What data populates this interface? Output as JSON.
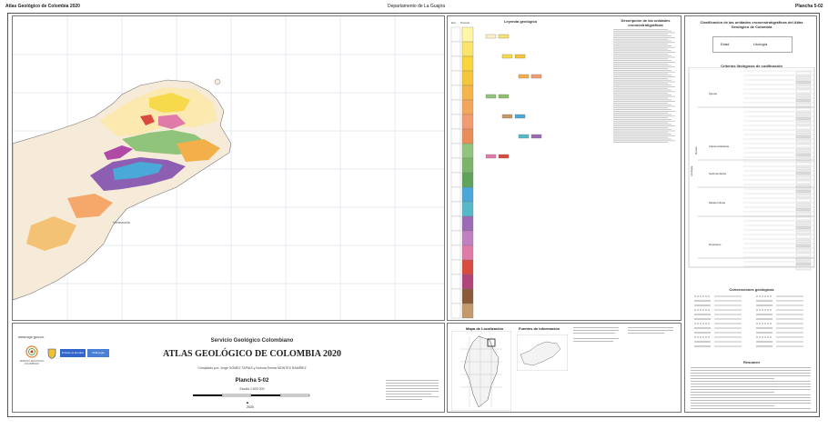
{
  "header": {
    "left": "Atlas Geológico de Colombia 2020",
    "center": "Departamento de La Guajira",
    "right": "Plancha 5-02"
  },
  "map": {
    "place_label": "Venezuela",
    "colors": {
      "sea": "#ffffff",
      "land_background": "#f6ead9",
      "quaternary_light": "#fbe9b0",
      "quaternary_yellow": "#f7d94c",
      "neogene_orange": "#f3b04a",
      "paleogene": "#f6a86b",
      "cretaceous_green": "#8fc47a",
      "jurassic_blue": "#4aa9d9",
      "triassic_purple": "#8c5fb3",
      "metamorphic_pink": "#e07aa9",
      "volcanic_red": "#d94b3c",
      "mountain_magenta": "#b04aa6"
    }
  },
  "legend": {
    "title": "Leyenda geológica",
    "description_title": "Descripción de las unidades cronoestratigráficas",
    "column_headers": [
      "Era",
      "Periodo"
    ],
    "strat_colors": [
      "#fff6a6",
      "#fbe46b",
      "#f8d53c",
      "#f6c63a",
      "#f4b54a",
      "#f2a65b",
      "#f29a72",
      "#e98e58",
      "#93c47d",
      "#7bb56a",
      "#5fa35b",
      "#4da6d8",
      "#57b8c9",
      "#9b6bb5",
      "#c07fc0",
      "#e07aa9",
      "#d94b3c",
      "#b0447b",
      "#8a5a3a",
      "#c49a6c"
    ],
    "boxes": [
      {
        "color": "#fbf2c8"
      },
      {
        "color": "#f7e27a"
      },
      {
        "color": "#f7d94c"
      },
      {
        "color": "#f6c63a"
      },
      {
        "color": "#f3b04a"
      },
      {
        "color": "#f29a72"
      },
      {
        "color": "#93c47d"
      },
      {
        "color": "#8fbf6a"
      },
      {
        "color": "#c49a6c"
      },
      {
        "color": "#4aa9d9"
      },
      {
        "color": "#57b8c9"
      },
      {
        "color": "#9b6bb5"
      },
      {
        "color": "#e07aa9"
      },
      {
        "color": "#d94b3c"
      }
    ]
  },
  "right_panel": {
    "classification_title": "Clasificación de las unidades cronoestratigráficas del Atlas Geológico de Colombia",
    "code_label": "Edad",
    "litho_label": "Litología",
    "criteria_title": "Criterios litológicos de codificación",
    "litho_groups": [
      "Ígneas",
      "Volcanoclásticas",
      "Sedimentarias",
      "Metamórficas",
      "Depósitos"
    ],
    "lithology_side": "Litología",
    "rocks_side": "Rocas",
    "conventions_title": "Convenciones geológicas",
    "summary_title": "Resumen"
  },
  "title_block": {
    "url": "www.sgc.gov.co",
    "institution": "Servicio Geológico Colombiano",
    "atlas_title": "ATLAS GEOLÓGICO DE COLOMBIA 2020",
    "compiled_by": "Compilado por: Jorge GÓMEZ TAPIAS y Nohora Emma MONTES RAMÍREZ",
    "sheet": "Plancha 5-02",
    "scale": "Escala 1:500 000",
    "year": "2020",
    "logo_text": "SERVICIO GEOLÓGICO COLOMBIANO",
    "gov_text": "El futuro es de todos",
    "ministry_text": "MinEnergía"
  },
  "location": {
    "title": "Mapa de Localización",
    "sources_title": "Fuentes de información"
  }
}
